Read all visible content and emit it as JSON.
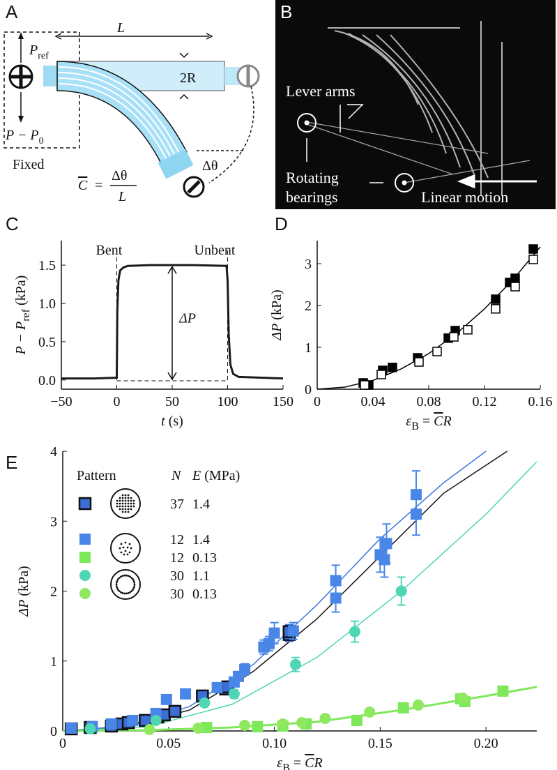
{
  "panel_a": {
    "letter": "A",
    "length": "L",
    "p": "P",
    "ref": "ref",
    "radius": "2R",
    "p_minus": "P − P",
    "zero": "0",
    "fixed": "Fixed",
    "c": "C",
    "equals": "=",
    "dtheta_num": "Δθ",
    "den": "L",
    "dtheta": "Δθ"
  },
  "panel_b": {
    "letter": "B",
    "lever": "Lever arms",
    "rotating": "Rotating",
    "bearings": "bearings",
    "linear": "Linear motion"
  },
  "chart_data": [
    {
      "type": "line",
      "letter": "C",
      "ylabel": [
        "P − P",
        "ref",
        " (kPa)"
      ],
      "xlabel": [
        "t",
        " (s)"
      ],
      "annotations": [
        "Bent",
        "Unbent",
        "ΔP"
      ],
      "color": "#1a1a1a",
      "x": [
        -50,
        -20,
        0,
        0.5,
        1.5,
        3,
        6,
        10,
        30,
        50,
        70,
        99,
        100,
        101,
        102.5,
        105,
        110,
        130,
        150
      ],
      "values": [
        0.02,
        0.02,
        0.03,
        0.9,
        1.3,
        1.43,
        1.47,
        1.49,
        1.5,
        1.5,
        1.5,
        1.49,
        1.3,
        0.6,
        0.2,
        0.08,
        0.04,
        0.03,
        0.02
      ],
      "xlim": [
        -50,
        150
      ],
      "ylim": [
        -0.12,
        1.82
      ],
      "xticks": [
        {
          "value": -50,
          "label": "−50"
        },
        0,
        50,
        100,
        150
      ],
      "yticks": [
        {
          "value": 0,
          "label": "0.0"
        },
        {
          "value": 0.5,
          "label": "0.5"
        },
        {
          "value": 1,
          "label": "1.0"
        },
        {
          "value": 1.5,
          "label": "1.5"
        }
      ]
    },
    {
      "type": "scatter",
      "letter": "D",
      "ylabel": [
        "ΔP",
        " (kPa)"
      ],
      "xlabel": [
        "ε",
        "B",
        " = ",
        "C",
        "R"
      ],
      "series": [
        {
          "color": "#000000",
          "fill": "filled",
          "x": [
            0.033,
            0.037,
            0.047,
            0.054,
            0.072,
            0.094,
            0.099,
            0.128,
            0.138,
            0.142,
            0.155
          ],
          "values": [
            0.15,
            0.1,
            0.45,
            0.52,
            0.75,
            1.22,
            1.4,
            2.15,
            2.55,
            2.65,
            3.35
          ]
        },
        {
          "color": "#000000",
          "fill": "open",
          "x": [
            0.034,
            0.046,
            0.073,
            0.086,
            0.098,
            0.108,
            0.128,
            0.142,
            0.155
          ],
          "values": [
            0.1,
            0.35,
            0.65,
            0.9,
            1.25,
            1.42,
            1.92,
            2.45,
            3.1
          ]
        }
      ],
      "fits": [
        {
          "color": "#000000",
          "x": [
            0,
            0.02,
            0.04,
            0.06,
            0.08,
            0.1,
            0.12,
            0.14,
            0.16
          ],
          "values": [
            0,
            0.05,
            0.21,
            0.48,
            0.85,
            1.33,
            1.92,
            2.6,
            3.4
          ]
        }
      ],
      "xlim": [
        0,
        0.16
      ],
      "ylim": [
        0,
        3.55
      ],
      "xticks": [
        0,
        0.04,
        0.08,
        0.12,
        0.16
      ],
      "yticks": [
        0,
        1,
        2,
        3
      ]
    },
    {
      "type": "scatter",
      "letter": "E",
      "ylabel": [
        "ΔP",
        " (kPa)"
      ],
      "xlabel": [
        "ε",
        "B",
        " = ",
        "C",
        "R"
      ],
      "legend_header": [
        "Pattern",
        "N",
        "E",
        " (MPa)"
      ],
      "series": [
        {
          "N": "37",
          "E": "1.4",
          "color": "#3b6fd6",
          "edge": "#111111",
          "marker": "square",
          "x": [
            0.004,
            0.013,
            0.023,
            0.028,
            0.031,
            0.039,
            0.045,
            0.048,
            0.053,
            0.066,
            0.077,
            0.078,
            0.107,
            0.107
          ],
          "values": [
            0.03,
            0.05,
            0.07,
            0.1,
            0.12,
            0.15,
            0.2,
            0.23,
            0.28,
            0.5,
            0.6,
            0.63,
            1.38,
            1.42
          ],
          "errors": [
            null,
            null,
            null,
            null,
            null,
            null,
            null,
            null,
            null,
            null,
            null,
            null,
            0.1,
            0.1
          ]
        },
        {
          "N": "12",
          "E": "1.4",
          "color": "#4a86e8",
          "marker": "square",
          "x": [
            0.004,
            0.014,
            0.023,
            0.033,
            0.044,
            0.049,
            0.058,
            0.073,
            0.081,
            0.083,
            0.086,
            0.095,
            0.0975,
            0.1,
            0.109,
            0.129,
            0.129,
            0.15,
            0.153,
            0.152,
            0.167,
            0.167
          ],
          "values": [
            0.04,
            0.06,
            0.1,
            0.15,
            0.25,
            0.45,
            0.53,
            0.62,
            0.7,
            0.78,
            0.88,
            1.2,
            1.25,
            1.4,
            1.43,
            1.9,
            2.15,
            2.52,
            2.68,
            2.45,
            3.1,
            3.38
          ],
          "errors": [
            null,
            null,
            null,
            null,
            null,
            null,
            null,
            null,
            null,
            null,
            0.08,
            0.1,
            0.1,
            0.15,
            0.12,
            0.2,
            0.22,
            0.25,
            0.28,
            0.25,
            0.3,
            0.34
          ]
        },
        {
          "N": "12",
          "E": "0.13",
          "color": "#7de85a",
          "marker": "square",
          "x": [
            0.068,
            0.092,
            0.104,
            0.115,
            0.139,
            0.161,
            0.188,
            0.19,
            0.208
          ],
          "values": [
            0.05,
            0.06,
            0.07,
            0.1,
            0.15,
            0.33,
            0.46,
            0.42,
            0.57
          ]
        },
        {
          "N": "30",
          "E": "1.1",
          "color": "#4fd6b4",
          "marker": "circle",
          "x": [
            0.013,
            0.044,
            0.067,
            0.081,
            0.11,
            0.138,
            0.16
          ],
          "values": [
            0.03,
            0.15,
            0.4,
            0.53,
            0.95,
            1.42,
            2.0
          ],
          "errors": [
            null,
            null,
            null,
            0.06,
            0.1,
            0.15,
            0.2
          ]
        },
        {
          "N": "30",
          "E": "0.13",
          "color": "#8fe860",
          "marker": "circle",
          "x": [
            0.041,
            0.064,
            0.086,
            0.104,
            0.113,
            0.124,
            0.145,
            0.168,
            0.189
          ],
          "values": [
            0.02,
            0.04,
            0.08,
            0.1,
            0.12,
            0.18,
            0.27,
            0.37,
            0.47
          ]
        }
      ],
      "fits": [
        {
          "color": "#111111",
          "x": [
            0,
            0.03,
            0.06,
            0.09,
            0.12,
            0.15,
            0.18,
            0.21
          ],
          "values": [
            0,
            0.06,
            0.3,
            0.85,
            1.6,
            2.5,
            3.4,
            4.0
          ]
        },
        {
          "color": "#3b78e0",
          "x": [
            0,
            0.03,
            0.06,
            0.09,
            0.12,
            0.15,
            0.18,
            0.2
          ],
          "values": [
            0,
            0.07,
            0.35,
            0.95,
            1.8,
            2.75,
            3.55,
            4.0
          ]
        },
        {
          "color": "#4fd6b4",
          "x": [
            0,
            0.04,
            0.08,
            0.12,
            0.16,
            0.2,
            0.224
          ],
          "values": [
            0,
            0.06,
            0.38,
            1.05,
            2.0,
            3.1,
            3.85
          ]
        },
        {
          "color": "#7de85a",
          "x": [
            0,
            0.04,
            0.08,
            0.12,
            0.16,
            0.2,
            0.224
          ],
          "values": [
            0,
            0.01,
            0.05,
            0.13,
            0.3,
            0.5,
            0.63
          ]
        }
      ],
      "xlim": [
        0,
        0.224
      ],
      "ylim": [
        0,
        4
      ],
      "xticks": [
        0,
        0.05,
        {
          "value": 0.1,
          "label": "0.10"
        },
        0.15,
        {
          "value": 0.2,
          "label": "0.20"
        }
      ],
      "yticks": [
        0,
        1,
        2,
        3,
        4
      ]
    }
  ]
}
